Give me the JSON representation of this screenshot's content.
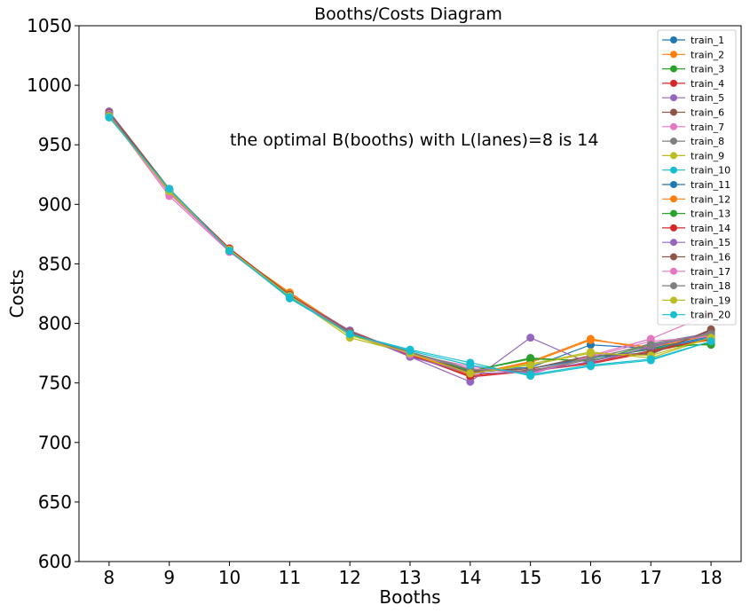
{
  "chart_data": {
    "type": "line",
    "title": "Booths/Costs Diagram",
    "xlabel": "Booths",
    "ylabel": "Costs",
    "annotation": "the optimal B(booths) with L(lanes)=8 is 14",
    "x": [
      8,
      9,
      10,
      11,
      12,
      13,
      14,
      15,
      16,
      17,
      18
    ],
    "xlim": [
      7.5,
      18.5
    ],
    "ylim": [
      600,
      1050
    ],
    "yticks": [
      600,
      650,
      700,
      750,
      800,
      850,
      900,
      950,
      1000,
      1050
    ],
    "grid": false,
    "legend_position": "top-right",
    "series": [
      {
        "name": "train_1",
        "color": "#1f77b4",
        "values": [
          976,
          912,
          862,
          823,
          792,
          775,
          761,
          763,
          782,
          779,
          789
        ]
      },
      {
        "name": "train_2",
        "color": "#ff7f0e",
        "values": [
          975,
          910,
          861,
          826,
          793,
          774,
          757,
          768,
          787,
          778,
          786
        ]
      },
      {
        "name": "train_3",
        "color": "#2ca02c",
        "values": [
          974,
          911,
          862,
          822,
          791,
          773,
          760,
          771,
          768,
          782,
          782
        ]
      },
      {
        "name": "train_4",
        "color": "#d62728",
        "values": [
          977,
          912,
          863,
          824,
          794,
          774,
          755,
          760,
          766,
          776,
          787
        ]
      },
      {
        "name": "train_5",
        "color": "#9467bd",
        "values": [
          976,
          911,
          861,
          823,
          793,
          772,
          751,
          788,
          766,
          781,
          791
        ]
      },
      {
        "name": "train_6",
        "color": "#8c564b",
        "values": [
          978,
          913,
          862,
          824,
          793,
          775,
          760,
          762,
          772,
          774,
          795
        ]
      },
      {
        "name": "train_7",
        "color": "#e377c2",
        "values": [
          975,
          907,
          860,
          823,
          792,
          774,
          764,
          757,
          773,
          787,
          808
        ]
      },
      {
        "name": "train_8",
        "color": "#7f7f7f",
        "values": [
          976,
          912,
          861,
          822,
          792,
          776,
          762,
          759,
          770,
          783,
          792
        ]
      },
      {
        "name": "train_9",
        "color": "#bcbd22",
        "values": [
          974,
          910,
          862,
          823,
          788,
          775,
          758,
          766,
          776,
          771,
          788
        ]
      },
      {
        "name": "train_10",
        "color": "#17becf",
        "values": [
          973,
          913,
          861,
          821,
          791,
          778,
          767,
          756,
          764,
          769,
          785
        ]
      },
      {
        "name": "train_11",
        "color": "#1f77b4",
        "values": [
          976,
          911,
          862,
          824,
          792,
          775,
          759,
          762,
          771,
          778,
          788
        ]
      },
      {
        "name": "train_12",
        "color": "#ff7f0e",
        "values": [
          975,
          912,
          861,
          825,
          793,
          774,
          758,
          767,
          786,
          780,
          790
        ]
      },
      {
        "name": "train_13",
        "color": "#2ca02c",
        "values": [
          977,
          911,
          862,
          823,
          792,
          776,
          760,
          770,
          769,
          779,
          783
        ]
      },
      {
        "name": "train_14",
        "color": "#d62728",
        "values": [
          976,
          912,
          863,
          824,
          793,
          773,
          756,
          761,
          767,
          777,
          787
        ]
      },
      {
        "name": "train_15",
        "color": "#9467bd",
        "values": [
          978,
          911,
          861,
          823,
          794,
          772,
          758,
          759,
          768,
          780,
          793
        ]
      },
      {
        "name": "train_16",
        "color": "#8c564b",
        "values": [
          977,
          913,
          862,
          824,
          793,
          775,
          759,
          762,
          773,
          775,
          794
        ]
      },
      {
        "name": "train_17",
        "color": "#e377c2",
        "values": [
          976,
          909,
          861,
          823,
          792,
          774,
          762,
          758,
          772,
          785,
          789
        ]
      },
      {
        "name": "train_18",
        "color": "#7f7f7f",
        "values": [
          975,
          912,
          861,
          822,
          792,
          776,
          761,
          760,
          771,
          782,
          791
        ]
      },
      {
        "name": "train_19",
        "color": "#bcbd22",
        "values": [
          974,
          911,
          862,
          823,
          790,
          775,
          758,
          765,
          775,
          773,
          788
        ]
      },
      {
        "name": "train_20",
        "color": "#17becf",
        "values": [
          973,
          913,
          861,
          822,
          791,
          777,
          765,
          757,
          765,
          770,
          785
        ]
      }
    ]
  }
}
